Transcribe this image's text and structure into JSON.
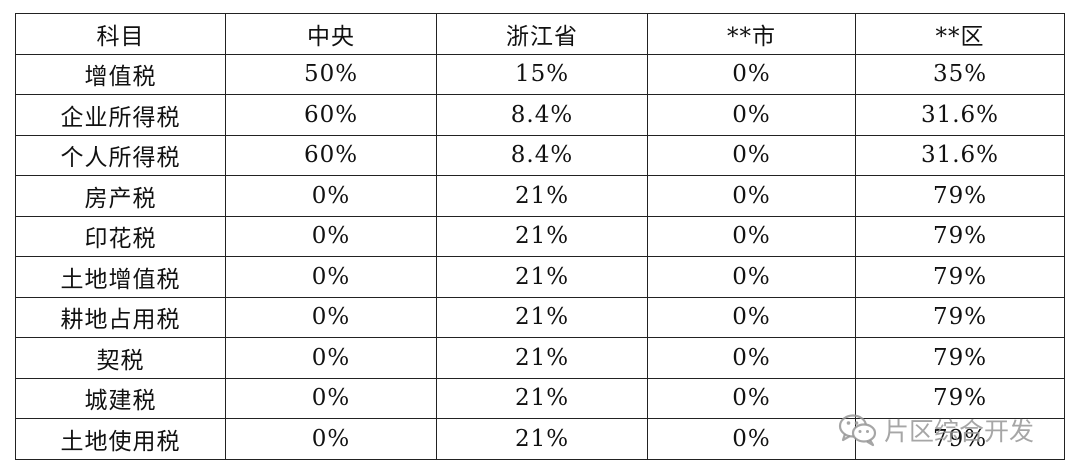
{
  "table": {
    "headers": [
      "科目",
      "中央",
      "浙江省",
      "**市",
      "**区"
    ],
    "rows": [
      [
        "增值税",
        "50%",
        "15%",
        "0%",
        "35%"
      ],
      [
        "企业所得税",
        "60%",
        "8.4%",
        "0%",
        "31.6%"
      ],
      [
        "个人所得税",
        "60%",
        "8.4%",
        "0%",
        "31.6%"
      ],
      [
        "房产税",
        "0%",
        "21%",
        "0%",
        "79%"
      ],
      [
        "印花税",
        "0%",
        "21%",
        "0%",
        "79%"
      ],
      [
        "土地增值税",
        "0%",
        "21%",
        "0%",
        "79%"
      ],
      [
        "耕地占用税",
        "0%",
        "21%",
        "0%",
        "79%"
      ],
      [
        "契税",
        "0%",
        "21%",
        "0%",
        "79%"
      ],
      [
        "城建税",
        "0%",
        "21%",
        "0%",
        "79%"
      ],
      [
        "土地使用税",
        "0%",
        "21%",
        "0%",
        "79%"
      ]
    ]
  },
  "watermark": {
    "text": "片区综合开发",
    "icon": "wechat-icon"
  }
}
